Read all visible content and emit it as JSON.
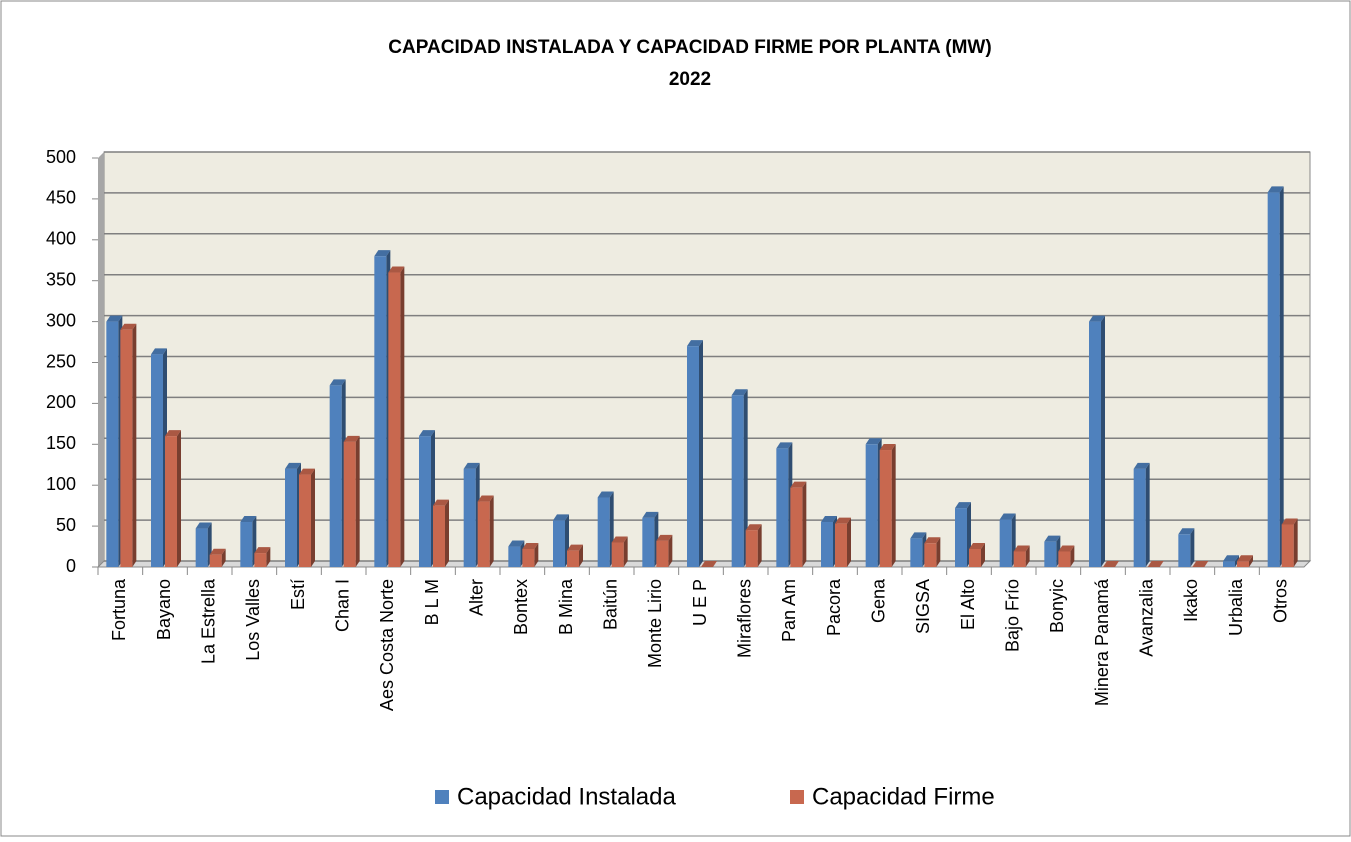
{
  "chart_data": {
    "type": "bar",
    "title": "CAPACIDAD  INSTALADA  Y  CAPACIDAD FIRME POR PLANTA  (MW)",
    "subtitle": "2022",
    "categories": [
      "Fortuna",
      "Bayano",
      "La Estrella",
      "Los Valles",
      "Estí",
      "Chan I",
      "Aes Costa Norte",
      "B L M",
      "Alter",
      "Bontex",
      "B Mina",
      "Baitún",
      "Monte Lirio",
      "U E P",
      "Miraflores",
      "Pan Am",
      "Pacora",
      "Gena",
      "SIGSA",
      "El Alto",
      "Bajo Frío",
      "Bonyic",
      "Minera Panamá",
      "Avanzalia",
      "Ikako",
      "Urbalia",
      "Otros"
    ],
    "series": [
      {
        "name": "Capacidad  Instalada",
        "color": "#4f81bd",
        "values": [
          300,
          260,
          47,
          55,
          120,
          222,
          380,
          160,
          120,
          25,
          57,
          85,
          60,
          270,
          210,
          145,
          55,
          150,
          35,
          72,
          58,
          31,
          300,
          120,
          40,
          7,
          458
        ]
      },
      {
        "name": "Capacidad Firme",
        "color": "#c8684f",
        "values": [
          290,
          160,
          15,
          17,
          113,
          153,
          360,
          75,
          80,
          22,
          20,
          30,
          32,
          0,
          45,
          97,
          53,
          143,
          29,
          22,
          19,
          19,
          0,
          0,
          0,
          7,
          52
        ]
      }
    ],
    "ylim": [
      0,
      500
    ],
    "yticks": [
      0,
      50,
      100,
      150,
      200,
      250,
      300,
      350,
      400,
      450,
      500
    ],
    "grid": true,
    "legend": "bottom"
  }
}
